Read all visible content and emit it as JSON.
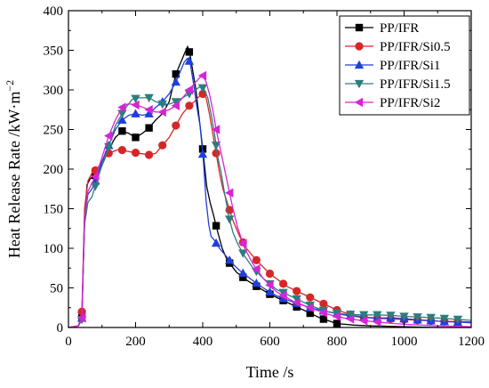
{
  "chart_data": {
    "type": "line",
    "xlabel": "Time /s",
    "ylabel": "Heat Release Rate /kW·m",
    "ylabel_sup": "−2",
    "xlim": [
      0,
      1200
    ],
    "ylim": [
      0,
      400
    ],
    "xticks": [
      "0",
      "200",
      "400",
      "600",
      "800",
      "1000",
      "1200"
    ],
    "yticks": [
      "0",
      "50",
      "100",
      "150",
      "200",
      "250",
      "300",
      "350",
      "400"
    ],
    "grid": false,
    "legend_position": "top-right",
    "series": [
      {
        "name": "PP/IFR",
        "color": "#000000",
        "marker": "square",
        "points": [
          [
            0,
            0
          ],
          [
            30,
            2
          ],
          [
            40,
            15
          ],
          [
            48,
            130
          ],
          [
            55,
            180
          ],
          [
            65,
            188
          ],
          [
            80,
            192
          ],
          [
            100,
            205
          ],
          [
            120,
            225
          ],
          [
            140,
            240
          ],
          [
            160,
            248
          ],
          [
            180,
            245
          ],
          [
            200,
            240
          ],
          [
            220,
            245
          ],
          [
            240,
            252
          ],
          [
            260,
            262
          ],
          [
            280,
            270
          ],
          [
            300,
            285
          ],
          [
            320,
            320
          ],
          [
            335,
            335
          ],
          [
            345,
            345
          ],
          [
            355,
            355
          ],
          [
            362,
            345
          ],
          [
            372,
            320
          ],
          [
            380,
            300
          ],
          [
            392,
            255
          ],
          [
            402,
            218
          ],
          [
            412,
            178
          ],
          [
            422,
            158
          ],
          [
            432,
            142
          ],
          [
            445,
            120
          ],
          [
            458,
            100
          ],
          [
            470,
            88
          ],
          [
            482,
            80
          ],
          [
            500,
            70
          ],
          [
            530,
            60
          ],
          [
            560,
            52
          ],
          [
            600,
            42
          ],
          [
            650,
            32
          ],
          [
            700,
            22
          ],
          [
            750,
            12
          ],
          [
            800,
            5
          ],
          [
            850,
            3
          ],
          [
            900,
            2
          ],
          [
            1000,
            1
          ],
          [
            1100,
            0
          ],
          [
            1200,
            0
          ]
        ],
        "marker_x": [
          40,
          80,
          160,
          200,
          240,
          320,
          360,
          400,
          440,
          480,
          520,
          560,
          600,
          640,
          680,
          720,
          760,
          800
        ]
      },
      {
        "name": "PP/IFR/Si0.5",
        "color": "#d62728",
        "marker": "circle",
        "points": [
          [
            0,
            0
          ],
          [
            30,
            2
          ],
          [
            40,
            20
          ],
          [
            48,
            150
          ],
          [
            58,
            185
          ],
          [
            70,
            195
          ],
          [
            85,
            200
          ],
          [
            100,
            210
          ],
          [
            120,
            220
          ],
          [
            150,
            225
          ],
          [
            180,
            222
          ],
          [
            210,
            220
          ],
          [
            240,
            218
          ],
          [
            260,
            220
          ],
          [
            280,
            230
          ],
          [
            300,
            240
          ],
          [
            320,
            255
          ],
          [
            340,
            270
          ],
          [
            360,
            280
          ],
          [
            375,
            285
          ],
          [
            390,
            292
          ],
          [
            400,
            295
          ],
          [
            410,
            290
          ],
          [
            420,
            270
          ],
          [
            430,
            245
          ],
          [
            440,
            220
          ],
          [
            450,
            195
          ],
          [
            460,
            175
          ],
          [
            475,
            155
          ],
          [
            490,
            135
          ],
          [
            510,
            115
          ],
          [
            530,
            100
          ],
          [
            560,
            85
          ],
          [
            600,
            68
          ],
          [
            650,
            52
          ],
          [
            700,
            42
          ],
          [
            750,
            32
          ],
          [
            800,
            22
          ],
          [
            850,
            15
          ],
          [
            900,
            12
          ],
          [
            1000,
            10
          ],
          [
            1100,
            8
          ],
          [
            1200,
            7
          ]
        ],
        "marker_x": [
          40,
          80,
          120,
          160,
          200,
          240,
          280,
          320,
          360,
          400,
          440,
          480,
          520,
          560,
          600,
          640,
          680,
          720,
          760,
          800,
          840,
          880,
          920,
          960,
          1000,
          1040,
          1080,
          1120,
          1160
        ]
      },
      {
        "name": "PP/IFR/Si1",
        "color": "#1f3fdc",
        "marker": "triangle-up",
        "points": [
          [
            0,
            0
          ],
          [
            30,
            2
          ],
          [
            40,
            12
          ],
          [
            48,
            140
          ],
          [
            58,
            168
          ],
          [
            70,
            175
          ],
          [
            85,
            190
          ],
          [
            100,
            210
          ],
          [
            120,
            230
          ],
          [
            140,
            250
          ],
          [
            160,
            262
          ],
          [
            180,
            268
          ],
          [
            200,
            270
          ],
          [
            220,
            268
          ],
          [
            240,
            270
          ],
          [
            260,
            278
          ],
          [
            280,
            285
          ],
          [
            300,
            295
          ],
          [
            320,
            310
          ],
          [
            335,
            325
          ],
          [
            345,
            335
          ],
          [
            355,
            340
          ],
          [
            362,
            335
          ],
          [
            372,
            310
          ],
          [
            382,
            280
          ],
          [
            392,
            255
          ],
          [
            402,
            210
          ],
          [
            410,
            160
          ],
          [
            418,
            130
          ],
          [
            425,
            115
          ],
          [
            435,
            110
          ],
          [
            450,
            100
          ],
          [
            470,
            90
          ],
          [
            490,
            80
          ],
          [
            510,
            72
          ],
          [
            540,
            62
          ],
          [
            580,
            50
          ],
          [
            620,
            40
          ],
          [
            670,
            32
          ],
          [
            720,
            25
          ],
          [
            770,
            20
          ],
          [
            820,
            16
          ],
          [
            870,
            13
          ],
          [
            920,
            12
          ],
          [
            970,
            12
          ],
          [
            1000,
            11
          ],
          [
            1100,
            8
          ],
          [
            1200,
            6
          ]
        ],
        "marker_x": [
          40,
          80,
          120,
          160,
          200,
          240,
          280,
          320,
          360,
          400,
          440,
          480,
          520,
          560,
          600,
          640,
          680,
          720,
          760,
          800,
          840,
          880,
          920,
          960,
          1000,
          1040,
          1080,
          1120,
          1160
        ]
      },
      {
        "name": "PP/IFR/Si1.5",
        "color": "#2e7d7d",
        "marker": "triangle-down",
        "points": [
          [
            0,
            0
          ],
          [
            30,
            2
          ],
          [
            40,
            10
          ],
          [
            48,
            130
          ],
          [
            58,
            158
          ],
          [
            70,
            165
          ],
          [
            85,
            185
          ],
          [
            100,
            205
          ],
          [
            120,
            228
          ],
          [
            140,
            255
          ],
          [
            160,
            270
          ],
          [
            175,
            280
          ],
          [
            190,
            288
          ],
          [
            210,
            290
          ],
          [
            240,
            290
          ],
          [
            260,
            285
          ],
          [
            280,
            282
          ],
          [
            300,
            282
          ],
          [
            320,
            285
          ],
          [
            340,
            290
          ],
          [
            360,
            295
          ],
          [
            375,
            298
          ],
          [
            385,
            302
          ],
          [
            395,
            305
          ],
          [
            405,
            300
          ],
          [
            415,
            290
          ],
          [
            425,
            270
          ],
          [
            435,
            245
          ],
          [
            445,
            215
          ],
          [
            455,
            195
          ],
          [
            465,
            170
          ],
          [
            478,
            140
          ],
          [
            490,
            120
          ],
          [
            505,
            105
          ],
          [
            525,
            90
          ],
          [
            550,
            75
          ],
          [
            580,
            62
          ],
          [
            620,
            48
          ],
          [
            670,
            38
          ],
          [
            720,
            28
          ],
          [
            770,
            20
          ],
          [
            820,
            17
          ],
          [
            870,
            16
          ],
          [
            920,
            16
          ],
          [
            970,
            15
          ],
          [
            1000,
            14
          ],
          [
            1100,
            12
          ],
          [
            1200,
            9
          ]
        ],
        "marker_x": [
          40,
          80,
          120,
          160,
          200,
          240,
          280,
          320,
          360,
          400,
          440,
          480,
          520,
          560,
          600,
          640,
          680,
          720,
          760,
          800,
          840,
          880,
          920,
          960,
          1000,
          1040,
          1080,
          1120,
          1160
        ]
      },
      {
        "name": "PP/IFR/Si2",
        "color": "#d624d6",
        "marker": "triangle-left",
        "points": [
          [
            0,
            0
          ],
          [
            30,
            2
          ],
          [
            40,
            12
          ],
          [
            48,
            140
          ],
          [
            58,
            172
          ],
          [
            70,
            182
          ],
          [
            85,
            195
          ],
          [
            100,
            215
          ],
          [
            120,
            242
          ],
          [
            140,
            262
          ],
          [
            160,
            278
          ],
          [
            175,
            282
          ],
          [
            190,
            282
          ],
          [
            210,
            280
          ],
          [
            240,
            275
          ],
          [
            260,
            272
          ],
          [
            280,
            272
          ],
          [
            300,
            275
          ],
          [
            320,
            280
          ],
          [
            340,
            290
          ],
          [
            360,
            300
          ],
          [
            375,
            308
          ],
          [
            390,
            315
          ],
          [
            400,
            318
          ],
          [
            410,
            310
          ],
          [
            420,
            295
          ],
          [
            430,
            275
          ],
          [
            440,
            250
          ],
          [
            450,
            230
          ],
          [
            460,
            210
          ],
          [
            475,
            180
          ],
          [
            490,
            150
          ],
          [
            505,
            125
          ],
          [
            525,
            100
          ],
          [
            550,
            80
          ],
          [
            580,
            62
          ],
          [
            620,
            45
          ],
          [
            670,
            33
          ],
          [
            720,
            25
          ],
          [
            770,
            17
          ],
          [
            820,
            12
          ],
          [
            870,
            9
          ],
          [
            920,
            7
          ],
          [
            970,
            5
          ],
          [
            1000,
            4
          ],
          [
            1100,
            2
          ],
          [
            1200,
            1
          ]
        ],
        "marker_x": [
          40,
          80,
          120,
          160,
          200,
          240,
          280,
          320,
          360,
          400,
          440,
          480,
          520,
          560,
          600,
          640,
          680,
          720,
          760,
          800,
          840,
          880,
          920
        ]
      }
    ]
  }
}
